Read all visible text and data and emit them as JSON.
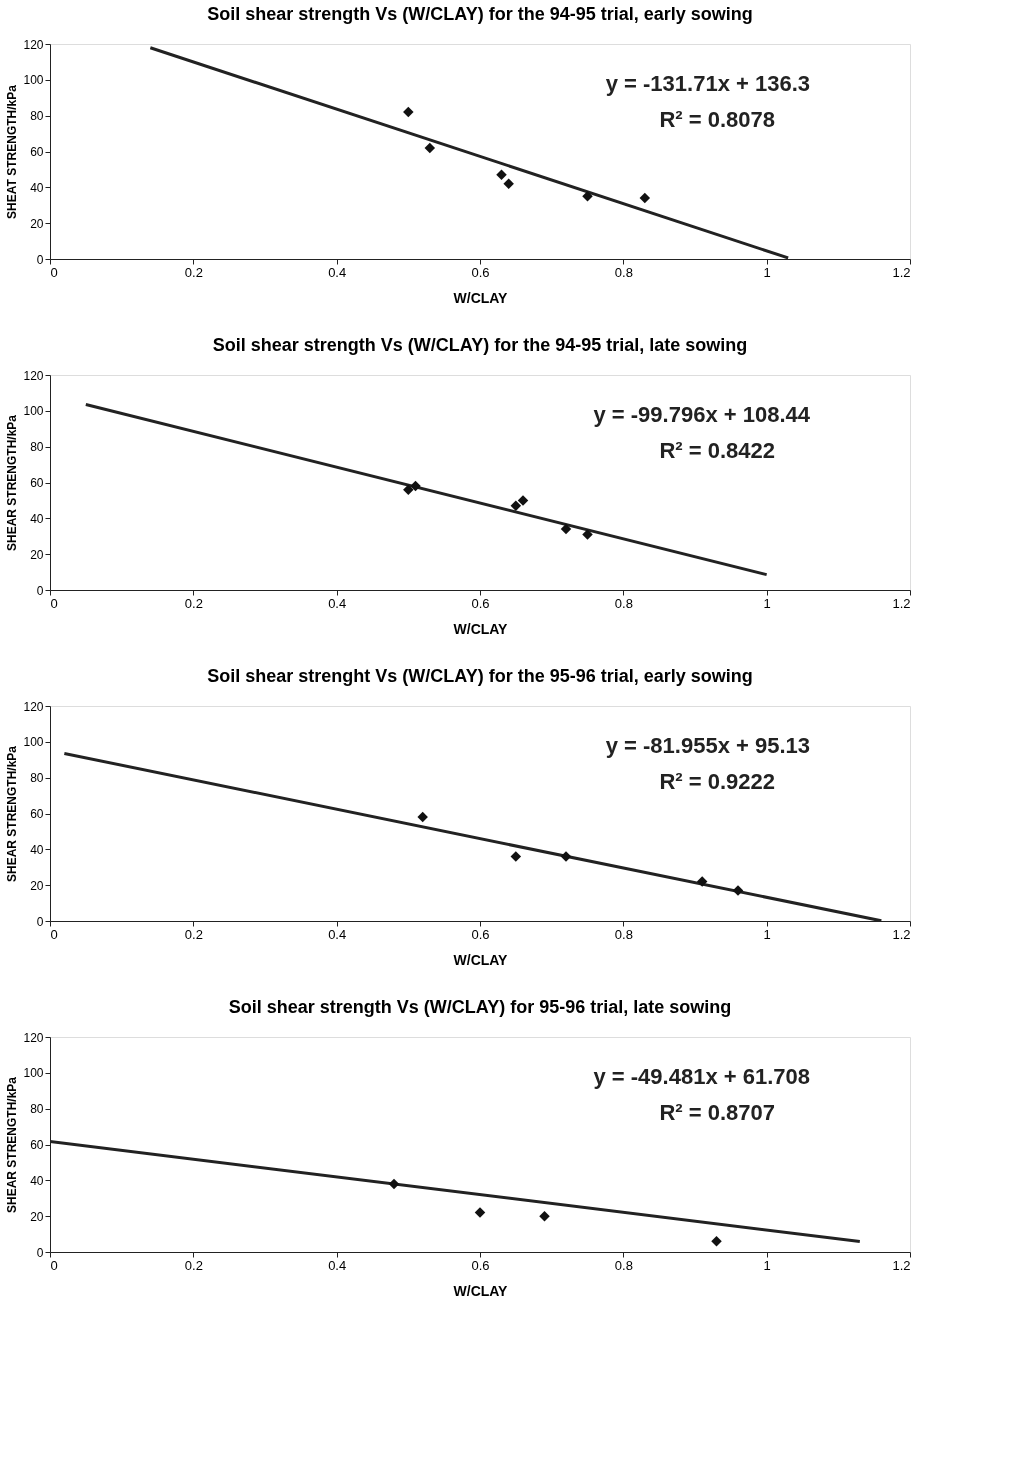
{
  "chart_data": [
    {
      "type": "scatter",
      "title": "Soil shear strength Vs (W/CLAY) for the 94-95 trial, early sowing",
      "xlabel": "W/CLAY",
      "ylabel": "SHEAT STRENGTH/kPa",
      "xlim": [
        0,
        1.2
      ],
      "xticks": [
        0,
        0.2,
        0.4,
        0.6,
        0.8,
        1,
        1.2
      ],
      "ylim": [
        0,
        120
      ],
      "yticks": [
        0,
        20,
        40,
        60,
        80,
        100,
        120
      ],
      "grid": false,
      "legend": false,
      "annotations": [
        "y = -131.71x + 136.3",
        "R² = 0.8078"
      ],
      "series": [
        {
          "marker": "diamond",
          "color": "#111111",
          "x": [
            0.5,
            0.53,
            0.63,
            0.64,
            0.75,
            0.83
          ],
          "values": [
            82,
            62,
            47,
            42,
            35,
            34
          ]
        },
        {
          "type": "line",
          "color": "#222222",
          "x": [
            0.14,
            1.03
          ],
          "values": [
            117.9,
            0.6
          ]
        }
      ]
    },
    {
      "type": "scatter",
      "title": "Soil shear strength Vs (W/CLAY) for the 94-95 trial, late sowing",
      "xlabel": "W/CLAY",
      "ylabel": "SHEAR STRENGTH/kPa",
      "xlim": [
        0,
        1.2
      ],
      "xticks": [
        0,
        0.2,
        0.4,
        0.6,
        0.8,
        1,
        1.2
      ],
      "ylim": [
        0,
        120
      ],
      "yticks": [
        0,
        20,
        40,
        60,
        80,
        100,
        120
      ],
      "grid": false,
      "legend": false,
      "annotations": [
        "y = -99.796x + 108.44",
        "R² = 0.8422"
      ],
      "series": [
        {
          "marker": "diamond",
          "color": "#111111",
          "x": [
            0.5,
            0.51,
            0.65,
            0.66,
            0.72,
            0.75
          ],
          "values": [
            56,
            58,
            47,
            50,
            34,
            31
          ]
        },
        {
          "type": "line",
          "color": "#222222",
          "x": [
            0.05,
            1.0
          ],
          "values": [
            103.5,
            8.6
          ]
        }
      ]
    },
    {
      "type": "scatter",
      "title": "Soil shear strenght Vs (W/CLAY) for the 95-96 trial, early sowing",
      "xlabel": "W/CLAY",
      "ylabel": "SHEAR STRENGTH/kPa",
      "xlim": [
        0,
        1.2
      ],
      "xticks": [
        0,
        0.2,
        0.4,
        0.6,
        0.8,
        1,
        1.2
      ],
      "ylim": [
        0,
        120
      ],
      "yticks": [
        0,
        20,
        40,
        60,
        80,
        100,
        120
      ],
      "grid": false,
      "legend": false,
      "annotations": [
        "y = -81.955x + 95.13",
        "R² = 0.9222"
      ],
      "series": [
        {
          "marker": "diamond",
          "color": "#111111",
          "x": [
            0.52,
            0.65,
            0.72,
            0.91,
            0.96
          ],
          "values": [
            58,
            36,
            36,
            22,
            17
          ]
        },
        {
          "type": "line",
          "color": "#222222",
          "x": [
            0.02,
            1.16
          ],
          "values": [
            93.5,
            0.1
          ]
        }
      ]
    },
    {
      "type": "scatter",
      "title": "Soil shear strength Vs (W/CLAY) for 95-96 trial, late sowing",
      "xlabel": "W/CLAY",
      "ylabel": "SHEAR STRENGTH/kPa",
      "xlim": [
        0,
        1.2
      ],
      "xticks": [
        0,
        0.2,
        0.4,
        0.6,
        0.8,
        1,
        1.2
      ],
      "ylim": [
        0,
        120
      ],
      "yticks": [
        0,
        20,
        40,
        60,
        80,
        100,
        120
      ],
      "grid": false,
      "legend": false,
      "annotations": [
        "y = -49.481x + 61.708",
        "R² = 0.8707"
      ],
      "series": [
        {
          "marker": "diamond",
          "color": "#111111",
          "x": [
            0.48,
            0.6,
            0.69,
            0.93
          ],
          "values": [
            38,
            22,
            20,
            6
          ]
        },
        {
          "type": "line",
          "color": "#222222",
          "x": [
            0,
            1.13
          ],
          "values": [
            61.7,
            5.8
          ]
        }
      ]
    }
  ]
}
